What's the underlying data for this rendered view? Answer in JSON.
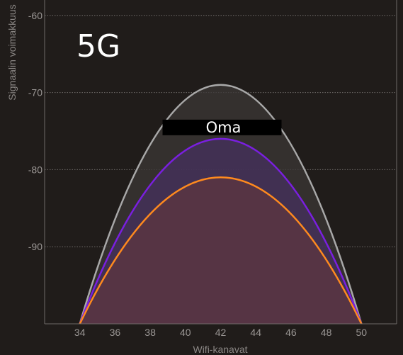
{
  "chart_data": {
    "type": "area",
    "band_title": "5G",
    "xlabel": "Wifi-kanavat",
    "ylabel": "Signaalin voimakkuus",
    "xlim": [
      32,
      52
    ],
    "ylim": [
      -100,
      -58
    ],
    "x_ticks": [
      34,
      36,
      38,
      40,
      42,
      44,
      46,
      48,
      50
    ],
    "y_ticks": [
      -60,
      -70,
      -80,
      -90
    ],
    "grid": true,
    "series": [
      {
        "name": "",
        "center_channel": 42,
        "peak": -69,
        "start_channel": 34,
        "end_channel": 50,
        "color": "#a8a8a8",
        "fill": "#3b3735",
        "label_style": "blur-label"
      },
      {
        "name": "Oma",
        "center_channel": 42,
        "peak": -76,
        "start_channel": 34,
        "end_channel": 50,
        "color": "#7a1fe0",
        "fill": "#45305f",
        "label_style": "highlight"
      },
      {
        "name": "",
        "center_channel": 42,
        "peak": -81,
        "start_channel": 34,
        "end_channel": 50,
        "color": "#ff8a1e",
        "fill": "#5e3540",
        "label_style": "blur-label-orange"
      }
    ]
  }
}
